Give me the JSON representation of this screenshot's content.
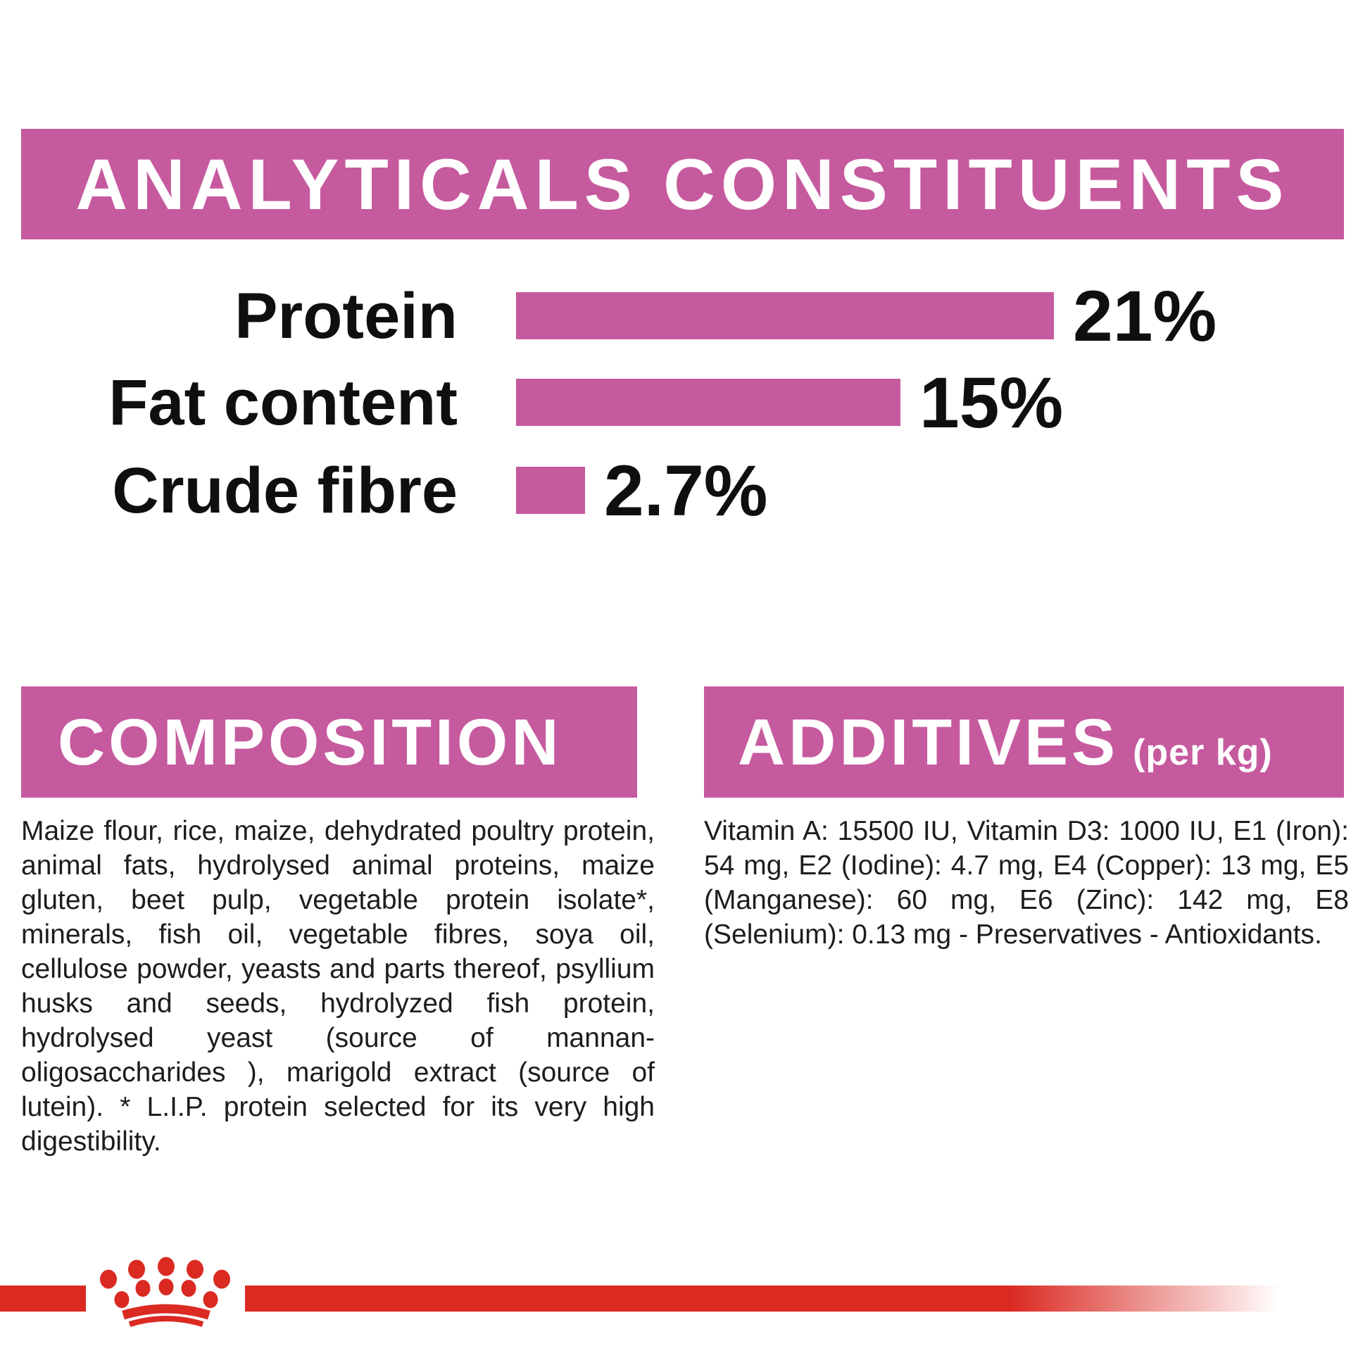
{
  "colors": {
    "pink": "#C65A9E",
    "red": "#DA2A22",
    "text": "#1d1d1b",
    "banner_text": "#ffffff"
  },
  "header": {
    "title": "ANALYTICALS CONSTITUENTS"
  },
  "chart_data": {
    "type": "bar",
    "orientation": "horizontal",
    "title": "ANALYTICALS CONSTITUENTS",
    "categories": [
      "Protein",
      "Fat content",
      "Crude fibre"
    ],
    "values": [
      21,
      15,
      2.7
    ],
    "value_labels": [
      "21%",
      "15%",
      "2.7%"
    ],
    "unit": "%",
    "xlim": [
      0,
      21
    ],
    "bar_color": "#C65A9E",
    "grid": false,
    "legend": false
  },
  "sections": {
    "composition": {
      "title": "COMPOSITION",
      "body": "Maize flour, rice, maize, dehydrated poultry protein, animal fats, hydrolysed animal proteins, maize gluten, beet pulp, vegetable protein isolate*, minerals, fish oil, vegetable fibres, soya oil, cellulose powder, yeasts and parts thereof, psyllium husks and seeds, hydrolyzed fish protein, hydrolysed yeast (source of mannan-oligosaccharides ), marigold extract (source of lutein). * L.I.P. protein selected for its very high digestibility."
    },
    "additives": {
      "title": "ADDITIVES",
      "subtitle": "(per kg)",
      "body": "Vitamin A: 15500 IU, Vitamin D3: 1000 IU, E1 (Iron): 54 mg, E2 (Iodine): 4.7 mg, E4 (Copper): 13 mg, E5 (Manganese): 60 mg, E6 (Zinc): 142 mg, E8 (Selenium): 0.13 mg - Preservatives - Antioxidants."
    }
  },
  "footer": {
    "logo": "royal-canin-crown"
  }
}
